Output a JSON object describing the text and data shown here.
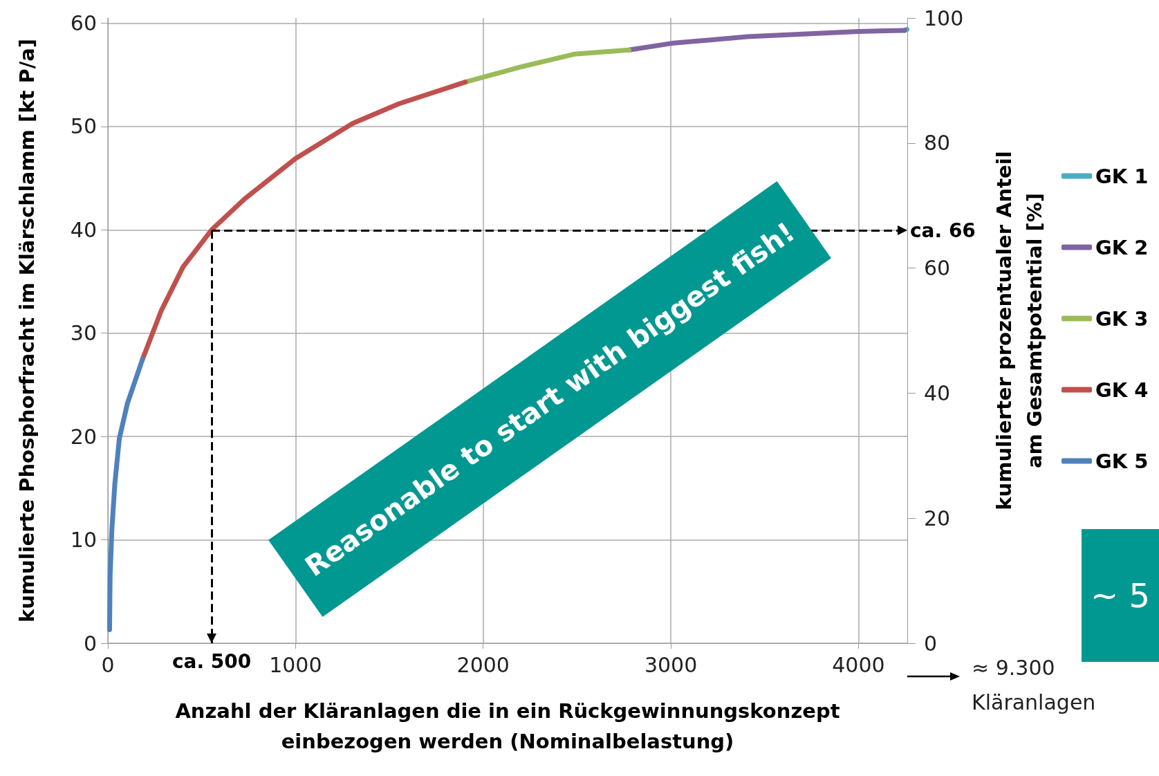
{
  "chart_data": {
    "type": "line",
    "xlabel": "Anzahl der Kläranlagen die in ein Rückgewinnungskonzept\neinbezogen werden (Nominalbelastung)",
    "ylabel": "kumulierte Phosphorfracht im Klärschlamm [kt P/a]",
    "y2label": "kumulierter prozentualer Anteil\nam Gesamtpotential [%]",
    "xlim": [
      0,
      4260
    ],
    "xticks": [
      0,
      1000,
      2000,
      3000,
      4000
    ],
    "ylim": [
      0,
      60.5
    ],
    "yticks": [
      0,
      10,
      20,
      30,
      40,
      50,
      60
    ],
    "y2lim": [
      0,
      100
    ],
    "y2ticks": [
      0,
      20,
      40,
      60,
      80,
      100
    ],
    "grid": true,
    "legend": "right",
    "marker": "none",
    "line_style": "solid",
    "series": [
      {
        "name": "GK 1",
        "color": "#4bacc6",
        "x": [
          4245,
          4258
        ],
        "values": [
          59.3,
          59.4
        ]
      },
      {
        "name": "GK 2",
        "color": "#8064a2",
        "x": [
          2777,
          3005,
          3408,
          4000,
          4245
        ],
        "values": [
          57.4,
          58.05,
          58.7,
          59.2,
          59.3
        ]
      },
      {
        "name": "GK 3",
        "color": "#9bbb59",
        "x": [
          1905,
          2209,
          2485,
          2777
        ],
        "values": [
          54.3,
          55.8,
          57.0,
          57.4
        ]
      },
      {
        "name": "GK 4",
        "color": "#c0504d",
        "x": [
          185,
          285,
          400,
          553,
          729,
          1000,
          1304,
          1551,
          1905
        ],
        "values": [
          27.5,
          32.2,
          36.4,
          40,
          43,
          46.9,
          50.3,
          52.2,
          54.3
        ]
      },
      {
        "name": "GK 5",
        "color": "#4f81bd",
        "x": [
          9,
          12,
          21,
          37,
          61,
          104,
          185
        ],
        "values": [
          1.3,
          6.5,
          10.9,
          15.4,
          19.8,
          23.2,
          27.5
        ]
      }
    ],
    "ref_lines": [
      {
        "axis": "x",
        "value": 553,
        "label": "ca. 500",
        "line_style": "dashed",
        "color": "#000000"
      },
      {
        "axis": "y2",
        "value": 66,
        "label": "ca. 66",
        "line_style": "dashed",
        "color": "#000000"
      }
    ],
    "annotations": [
      "Reasonable to start with biggest fish!",
      "≈ 9.300\nKläranlagen",
      "~ 5"
    ]
  }
}
